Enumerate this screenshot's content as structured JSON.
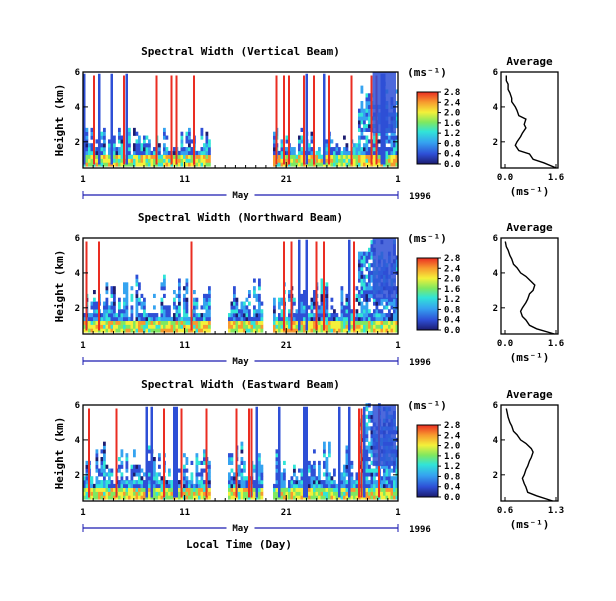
{
  "figure": {
    "xlabel": "Local Time (Day)",
    "month_label": "May",
    "year_label": "1996",
    "month_day_ticks": [
      "1",
      "11",
      "21",
      "1"
    ]
  },
  "chart_data": [
    {
      "type": "heatmap",
      "title": "Spectral Width (Vertical Beam)",
      "ylabel": "Height (km)",
      "yticks": [
        "2",
        "4",
        "6"
      ],
      "x_range_days": [
        1,
        32
      ],
      "ylim_km": [
        0.5,
        6
      ],
      "colorbar": {
        "unit": "(ms⁻¹)",
        "ticks": [
          "0.0",
          "0.4",
          "0.8",
          "1.2",
          "1.6",
          "2.0",
          "2.4",
          "2.8"
        ],
        "range": [
          0,
          2.8
        ]
      },
      "profile": {
        "title": "Average",
        "xlabel": "(ms⁻¹)",
        "xticks": [
          "0.0",
          "1.6"
        ],
        "xlim": [
          0.0,
          1.6
        ],
        "yticks": [
          "2",
          "4",
          "6"
        ],
        "height_km": [
          0.5,
          0.8,
          1.0,
          1.3,
          1.5,
          1.8,
          2.0,
          2.3,
          2.5,
          2.8,
          3.0,
          3.3,
          3.5,
          3.8,
          4.0,
          4.3,
          4.5,
          4.8,
          5.0,
          5.3,
          5.5,
          5.8
        ],
        "width_ms": [
          1.55,
          1.2,
          0.9,
          0.8,
          0.5,
          0.4,
          0.45,
          0.55,
          0.6,
          0.7,
          0.65,
          0.7,
          0.5,
          0.45,
          0.4,
          0.3,
          0.3,
          0.25,
          0.2,
          0.2,
          0.15,
          0.15
        ]
      }
    },
    {
      "type": "heatmap",
      "title": "Spectral Width (Northward Beam)",
      "ylabel": "Height (km)",
      "yticks": [
        "2",
        "4",
        "6"
      ],
      "x_range_days": [
        1,
        32
      ],
      "ylim_km": [
        0.5,
        6
      ],
      "colorbar": {
        "unit": "(ms⁻¹)",
        "ticks": [
          "0.0",
          "0.4",
          "0.8",
          "1.2",
          "1.6",
          "2.0",
          "2.4",
          "2.8"
        ],
        "range": [
          0,
          2.8
        ]
      },
      "profile": {
        "title": "Average",
        "xlabel": "(ms⁻¹)",
        "xticks": [
          "0.0",
          "1.6"
        ],
        "xlim": [
          0.0,
          1.6
        ],
        "yticks": [
          "2",
          "4",
          "6"
        ],
        "height_km": [
          0.5,
          0.8,
          1.0,
          1.3,
          1.5,
          1.8,
          2.0,
          2.3,
          2.5,
          2.8,
          3.0,
          3.3,
          3.5,
          3.8,
          4.0,
          4.3,
          4.5,
          4.8,
          5.0,
          5.3,
          5.5,
          5.8
        ],
        "width_ms": [
          1.5,
          1.0,
          0.8,
          0.7,
          0.6,
          0.55,
          0.6,
          0.7,
          0.75,
          0.8,
          0.9,
          0.95,
          0.85,
          0.7,
          0.55,
          0.45,
          0.35,
          0.3,
          0.25,
          0.2,
          0.15,
          0.12
        ]
      }
    },
    {
      "type": "heatmap",
      "title": "Spectral Width (Eastward Beam)",
      "ylabel": "Height (km)",
      "yticks": [
        "2",
        "4",
        "6"
      ],
      "x_range_days": [
        1,
        32
      ],
      "ylim_km": [
        0.5,
        6
      ],
      "colorbar": {
        "unit": "(ms⁻¹)",
        "ticks": [
          "0.0",
          "0.4",
          "0.8",
          "1.2",
          "1.6",
          "2.0",
          "2.4",
          "2.8"
        ],
        "range": [
          0,
          2.8
        ]
      },
      "profile": {
        "title": "Average",
        "xlabel": "(ms⁻¹)",
        "xticks": [
          "0.6",
          "1.3"
        ],
        "xlim": [
          0.0,
          1.6
        ],
        "yticks": [
          "2",
          "4",
          "6"
        ],
        "height_km": [
          0.5,
          0.8,
          1.0,
          1.3,
          1.5,
          1.8,
          2.0,
          2.3,
          2.5,
          2.8,
          3.0,
          3.3,
          3.5,
          3.8,
          4.0,
          4.3,
          4.5,
          4.8,
          5.0,
          5.3,
          5.5,
          5.8
        ],
        "width_ms": [
          1.45,
          1.0,
          0.75,
          0.7,
          0.65,
          0.6,
          0.65,
          0.7,
          0.75,
          0.8,
          0.85,
          0.9,
          0.85,
          0.7,
          0.55,
          0.45,
          0.35,
          0.3,
          0.25,
          0.2,
          0.18,
          0.15
        ]
      }
    }
  ]
}
